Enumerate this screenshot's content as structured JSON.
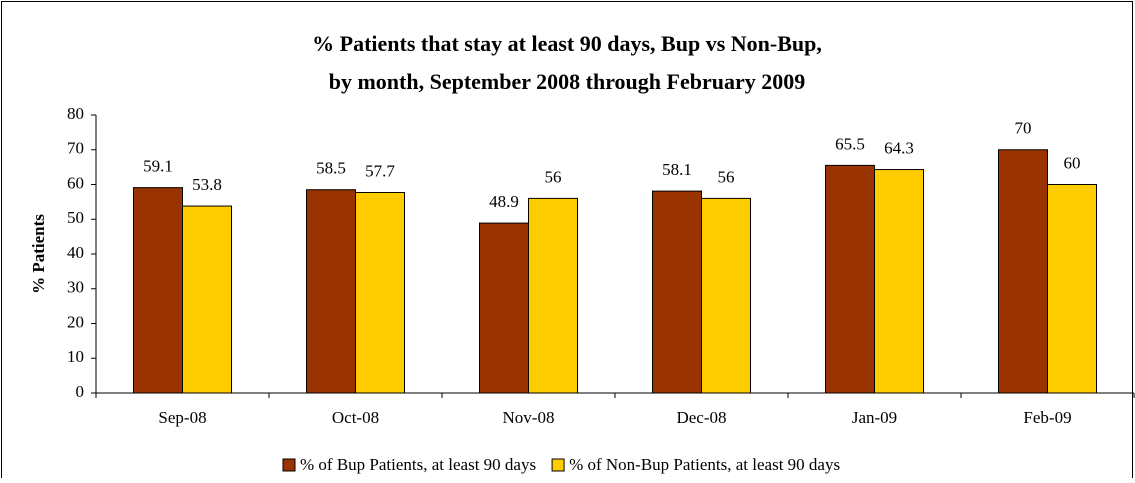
{
  "chart_data": {
    "type": "bar",
    "title": [
      "% Patients that stay at least 90 days, Bup vs Non-Bup,",
      "by month, September 2008 through February 2009"
    ],
    "y_label": "% Patients",
    "categories": [
      "Sep-08",
      "Oct-08",
      "Nov-08",
      "Dec-08",
      "Jan-09",
      "Feb-09"
    ],
    "series": [
      {
        "name": "% of Bup Patients, at least 90 days",
        "color": "#993300",
        "values": [
          59.1,
          58.5,
          48.9,
          58.1,
          65.5,
          70
        ]
      },
      {
        "name": "% of Non-Bup Patients, at least 90 days",
        "color": "#ffcc00",
        "values": [
          53.8,
          57.7,
          56,
          56,
          64.3,
          60
        ]
      }
    ],
    "ylim": [
      0,
      80
    ],
    "yticks": [
      0,
      10,
      20,
      30,
      40,
      50,
      60,
      70,
      80
    ],
    "grid": false,
    "legend": "bottom"
  }
}
